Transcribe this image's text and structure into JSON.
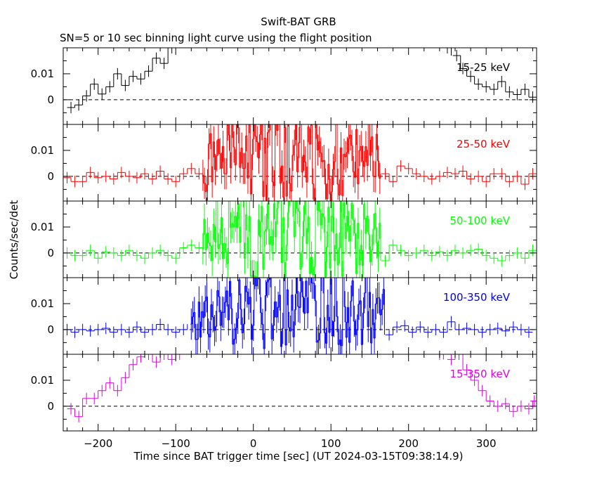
{
  "title": "Swift-BAT GRB",
  "subtitle": "SN=5 or 10 sec binning light curve using the flight position",
  "xlabel": "Time since BAT trigger time [sec] (UT 2024-03-15T09:38:14.9)",
  "ylabel": "Counts/sec/det",
  "chart_data": [
    {
      "type": "line",
      "name": "15-25 keV",
      "color": "#000000",
      "xlim": [
        -245,
        365
      ],
      "ylim": [
        -0.0095,
        0.02
      ],
      "yticks": [
        0,
        0.01
      ],
      "yticklabels": [
        "0",
        "0.01"
      ],
      "xticks": [
        -200,
        -100,
        0,
        100,
        200,
        300
      ],
      "reference_line": 0,
      "binning": "step, ~10 s bins, off-scale bins clipped at top",
      "points": [
        [
          -235,
          -0.003
        ],
        [
          -225,
          -0.002
        ],
        [
          -215,
          0.0015
        ],
        [
          -205,
          0.006
        ],
        [
          -195,
          0.0022
        ],
        [
          -185,
          0.005
        ],
        [
          -175,
          0.01
        ],
        [
          -165,
          0.0055
        ],
        [
          -155,
          0.009
        ],
        [
          -145,
          0.008
        ],
        [
          -135,
          0.011
        ],
        [
          -125,
          0.016
        ],
        [
          -115,
          0.014
        ],
        [
          -105,
          0.02
        ],
        [
          250,
          0.02
        ],
        [
          262,
          0.017
        ],
        [
          270,
          0.012
        ],
        [
          280,
          0.009
        ],
        [
          290,
          0.006
        ],
        [
          300,
          0.005
        ],
        [
          310,
          0.004
        ],
        [
          320,
          0.007
        ],
        [
          330,
          0.003
        ],
        [
          340,
          0.002
        ],
        [
          350,
          0.004
        ],
        [
          360,
          0.001
        ]
      ]
    },
    {
      "type": "line",
      "name": "25-50 keV",
      "color": "#ff0000",
      "xlim": [
        -245,
        365
      ],
      "ylim": [
        -0.0095,
        0.02
      ],
      "yticks": [
        0,
        0.01
      ],
      "yticklabels": [
        "0",
        "0.01"
      ],
      "xticks": [
        -200,
        -100,
        0,
        100,
        200,
        300
      ],
      "reference_line": 0,
      "binning": "step, ~10 s bins outside burst, ~2 s bins during burst (-65 to 165 s)",
      "active_window": [
        -65,
        165
      ],
      "active_amplitude": 0.02,
      "points": [
        [
          -240,
          -0.0005
        ],
        [
          -230,
          -0.002
        ],
        [
          -220,
          -0.002
        ],
        [
          -210,
          0.0015
        ],
        [
          -200,
          -0.0005
        ],
        [
          -190,
          0.0
        ],
        [
          -180,
          -0.001
        ],
        [
          -170,
          0.0015
        ],
        [
          -160,
          0.0
        ],
        [
          -150,
          -0.0005
        ],
        [
          -140,
          0.001
        ],
        [
          -130,
          -0.001
        ],
        [
          -120,
          0.002
        ],
        [
          -110,
          -0.001
        ],
        [
          -100,
          -0.002
        ],
        [
          -90,
          0.001
        ],
        [
          -80,
          0.003
        ],
        [
          -70,
          0.001
        ],
        [
          170,
          0.001
        ],
        [
          180,
          -0.002
        ],
        [
          190,
          0.004
        ],
        [
          200,
          0.003
        ],
        [
          210,
          0.001
        ],
        [
          220,
          0.0
        ],
        [
          230,
          -0.001
        ],
        [
          240,
          0.0
        ],
        [
          250,
          0.0015
        ],
        [
          260,
          0.001
        ],
        [
          270,
          0.002
        ],
        [
          280,
          -0.001
        ],
        [
          290,
          0.0
        ],
        [
          300,
          -0.002
        ],
        [
          310,
          0.001
        ],
        [
          320,
          0.001
        ],
        [
          330,
          -0.002
        ],
        [
          340,
          0.0
        ],
        [
          350,
          -0.003
        ],
        [
          360,
          0.001
        ]
      ]
    },
    {
      "type": "line",
      "name": "50-100 keV",
      "color": "#00ff00",
      "xlim": [
        -245,
        365
      ],
      "ylim": [
        -0.0095,
        0.02
      ],
      "yticks": [
        0,
        0.01
      ],
      "yticklabels": [
        "0",
        "0.01"
      ],
      "xticks": [
        -200,
        -100,
        0,
        100,
        200,
        300
      ],
      "reference_line": 0,
      "binning": "step, ~10 s bins outside burst, ~2 s bins during burst (-65 to 165 s)",
      "active_window": [
        -65,
        165
      ],
      "active_amplitude": 0.02,
      "points": [
        [
          -240,
          0.0
        ],
        [
          -230,
          -0.001
        ],
        [
          -220,
          -0.001
        ],
        [
          -210,
          0.001
        ],
        [
          -200,
          -0.002
        ],
        [
          -190,
          0.0005
        ],
        [
          -180,
          0.0
        ],
        [
          -170,
          -0.001
        ],
        [
          -160,
          0.001
        ],
        [
          -150,
          -0.001
        ],
        [
          -140,
          -0.002
        ],
        [
          -130,
          0.0
        ],
        [
          -120,
          0.001
        ],
        [
          -110,
          -0.001
        ],
        [
          -100,
          -0.002
        ],
        [
          -90,
          0.002
        ],
        [
          -80,
          0.003
        ],
        [
          -70,
          0.002
        ],
        [
          170,
          -0.003
        ],
        [
          180,
          0.003
        ],
        [
          190,
          0.001
        ],
        [
          200,
          -0.001
        ],
        [
          210,
          0.0
        ],
        [
          220,
          0.001
        ],
        [
          230,
          -0.001
        ],
        [
          240,
          0.0005
        ],
        [
          250,
          -0.001
        ],
        [
          260,
          0.001
        ],
        [
          270,
          0.0
        ],
        [
          280,
          0.001
        ],
        [
          290,
          0.0015
        ],
        [
          300,
          -0.001
        ],
        [
          310,
          -0.002
        ],
        [
          320,
          -0.003
        ],
        [
          330,
          -0.001
        ],
        [
          340,
          0.0
        ],
        [
          350,
          -0.002
        ],
        [
          360,
          0.001
        ]
      ]
    },
    {
      "type": "line",
      "name": "100-350 keV",
      "color": "#0000ff",
      "xlim": [
        -245,
        365
      ],
      "ylim": [
        -0.0095,
        0.02
      ],
      "yticks": [
        0,
        0.01
      ],
      "yticklabels": [
        "0",
        "0.01"
      ],
      "xticks": [
        -200,
        -100,
        0,
        100,
        200,
        300
      ],
      "reference_line": 0,
      "binning": "step, ~10 s bins outside burst, ~2 s bins during burst (-80 to 170 s)",
      "active_window": [
        -80,
        170
      ],
      "active_amplitude": 0.016,
      "points": [
        [
          -240,
          0.0
        ],
        [
          -230,
          -0.001
        ],
        [
          -220,
          0.0
        ],
        [
          -210,
          -0.0005
        ],
        [
          -200,
          0.0
        ],
        [
          -190,
          0.0005
        ],
        [
          -180,
          -0.001
        ],
        [
          -170,
          0.0
        ],
        [
          -160,
          -0.001
        ],
        [
          -150,
          0.001
        ],
        [
          -140,
          -0.001
        ],
        [
          -130,
          0.0
        ],
        [
          -120,
          0.002
        ],
        [
          -110,
          0.0
        ],
        [
          -100,
          -0.001
        ],
        [
          -90,
          0.0
        ],
        [
          175,
          -0.002
        ],
        [
          185,
          0.001
        ],
        [
          195,
          0.0015
        ],
        [
          205,
          -0.001
        ],
        [
          215,
          0.001
        ],
        [
          225,
          -0.001
        ],
        [
          235,
          0.0
        ],
        [
          245,
          -0.001
        ],
        [
          255,
          0.003
        ],
        [
          265,
          0.0
        ],
        [
          275,
          0.0005
        ],
        [
          285,
          0.0
        ],
        [
          295,
          -0.001
        ],
        [
          305,
          0.0
        ],
        [
          315,
          0.0005
        ],
        [
          325,
          -0.0005
        ],
        [
          335,
          0.001
        ],
        [
          345,
          0.0
        ],
        [
          355,
          -0.001
        ]
      ]
    },
    {
      "type": "line",
      "name": "15-350 keV",
      "color": "#e000e0",
      "xlim": [
        -245,
        365
      ],
      "ylim": [
        -0.0095,
        0.02
      ],
      "yticks": [
        0,
        0.01
      ],
      "yticklabels": [
        "0",
        "0.01"
      ],
      "xticks": [
        -200,
        -100,
        0,
        100,
        200,
        300
      ],
      "reference_line": 0,
      "binning": "step, ~10 s bins, off-scale bins clipped at top",
      "points": [
        [
          -235,
          -0.001
        ],
        [
          -225,
          -0.004
        ],
        [
          -215,
          0.003
        ],
        [
          -205,
          0.003
        ],
        [
          -195,
          0.006
        ],
        [
          -185,
          0.009
        ],
        [
          -175,
          0.006
        ],
        [
          -165,
          0.011
        ],
        [
          -155,
          0.016
        ],
        [
          -145,
          0.019
        ],
        [
          -135,
          0.02
        ],
        [
          -125,
          0.017
        ],
        [
          -115,
          0.02
        ],
        [
          -105,
          0.018
        ],
        [
          -95,
          0.02
        ],
        [
          240,
          0.02
        ],
        [
          255,
          0.018
        ],
        [
          265,
          0.02
        ],
        [
          275,
          0.014
        ],
        [
          285,
          0.01
        ],
        [
          295,
          0.006
        ],
        [
          305,
          0.002
        ],
        [
          315,
          0.0
        ],
        [
          325,
          0.001
        ],
        [
          335,
          -0.002
        ],
        [
          345,
          0.0
        ],
        [
          355,
          -0.001
        ],
        [
          362,
          0.002
        ]
      ]
    }
  ]
}
